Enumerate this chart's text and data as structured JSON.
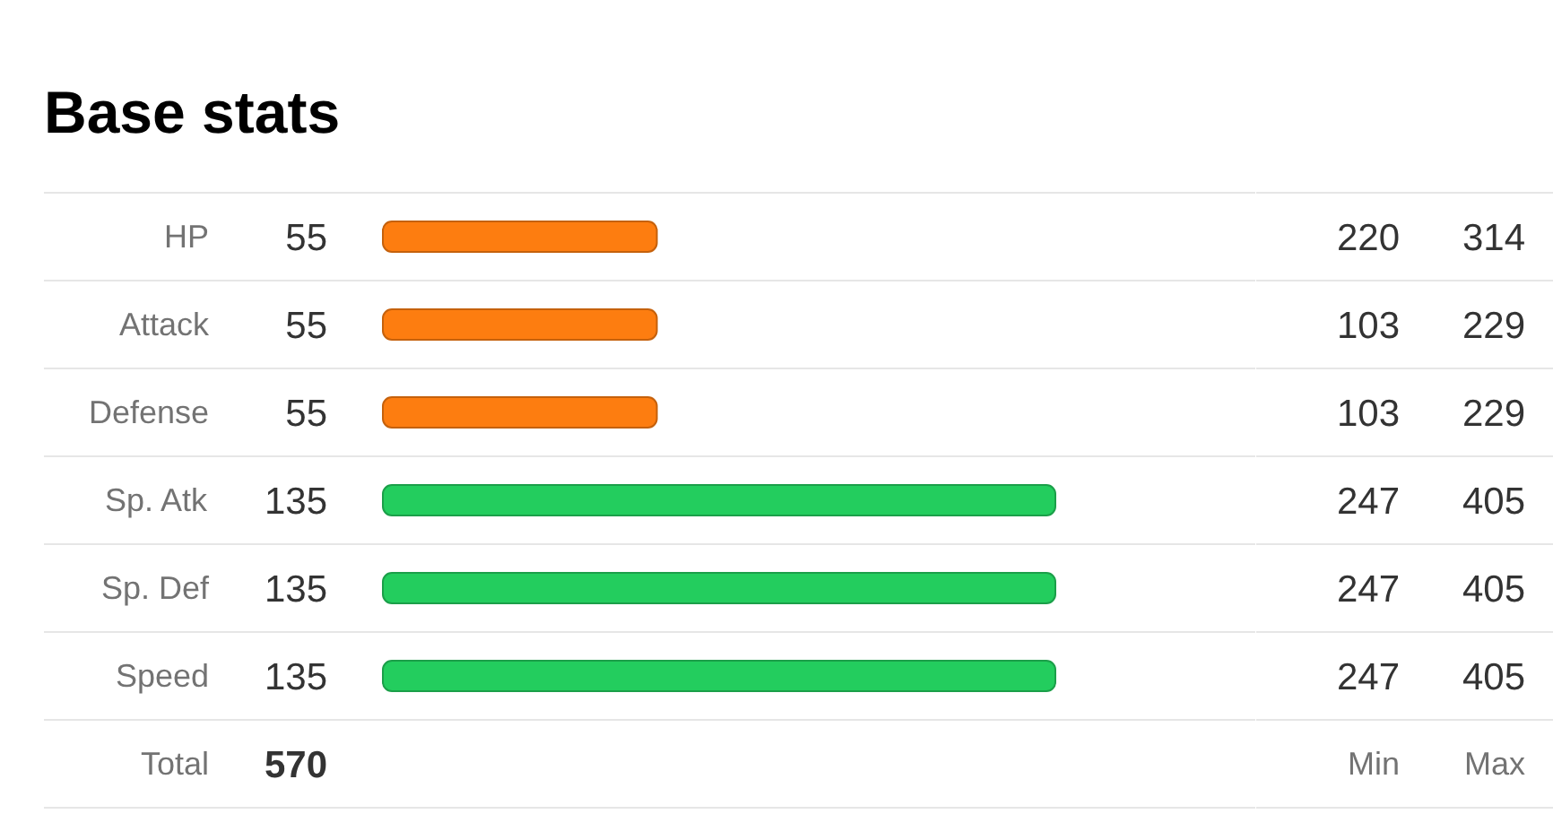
{
  "chart_data": [
    {
      "type": "bar",
      "orientation": "horizontal",
      "title": "Base stats",
      "categories": [
        "HP",
        "Attack",
        "Defense",
        "Sp. Atk",
        "Sp. Def",
        "Speed"
      ],
      "series": [
        {
          "values": [
            55,
            55,
            55,
            135,
            135,
            135
          ],
          "colors": [
            "#fd7d10",
            "#fd7d10",
            "#fd7d10",
            "#23cd5e",
            "#23cd5e",
            "#23cd5e"
          ]
        }
      ],
      "data_labels": true,
      "grid": "y",
      "annotations": [
        "Total",
        "570"
      ]
    },
    {
      "type": "other",
      "annotations": [
        "220",
        "314",
        "103",
        "229",
        "103",
        "229",
        "247",
        "405",
        "247",
        "405",
        "247",
        "405",
        "Min",
        "Max"
      ]
    }
  ]
}
